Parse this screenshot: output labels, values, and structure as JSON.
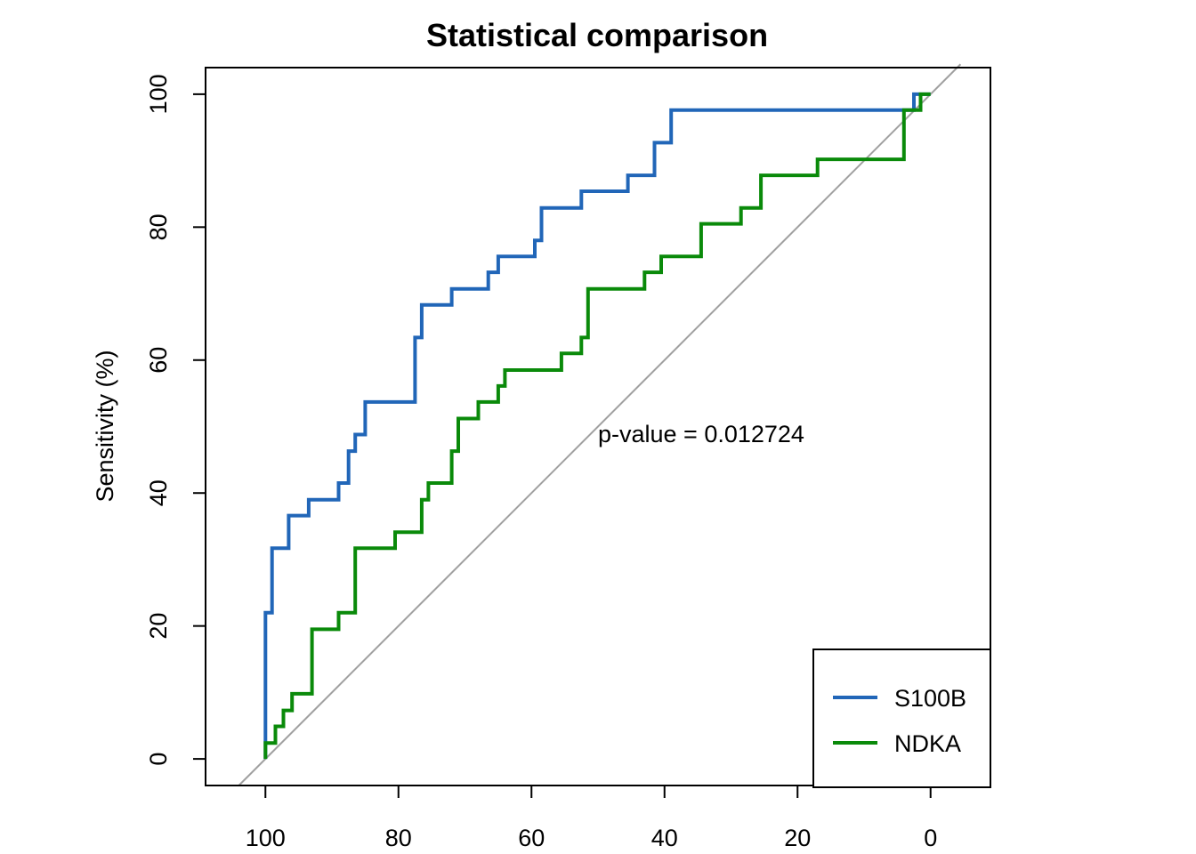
{
  "chart_data": {
    "type": "line",
    "title": "Statistical comparison",
    "xlabel": "",
    "ylabel": "Sensitivity (%)",
    "x_reversed": true,
    "xlim": [
      109,
      -9
    ],
    "ylim": [
      -4,
      104
    ],
    "x_ticks": [
      100,
      80,
      60,
      40,
      20,
      0
    ],
    "y_ticks": [
      0,
      20,
      40,
      60,
      80,
      100
    ],
    "x_tick_labels": [
      "100",
      "80",
      "60",
      "40",
      "20",
      "0"
    ],
    "y_tick_labels": [
      "0",
      "20",
      "40",
      "60",
      "80",
      "100"
    ],
    "annotation": "p-value = 0.012724",
    "annotation_pos": [
      50,
      49
    ],
    "legend_position": "bottom-right",
    "diagonal": {
      "color": "#a0a0a0"
    },
    "series": [
      {
        "name": "S100B",
        "color": "#2166b8",
        "x": [
          100,
          100,
          99,
          99,
          96.5,
          96.5,
          93.5,
          93.5,
          89,
          89,
          87.5,
          87.5,
          86.5,
          86.5,
          85,
          85,
          77.5,
          77.5,
          76.5,
          76.5,
          72,
          72,
          66.5,
          66.5,
          65,
          65,
          59.5,
          59.5,
          58.5,
          58.5,
          52.5,
          52.5,
          45.5,
          45.5,
          41.5,
          41.5,
          39,
          39,
          2.5,
          2.5,
          0
        ],
        "y": [
          0,
          22,
          22,
          31.7,
          31.7,
          36.6,
          36.6,
          39,
          39,
          41.5,
          41.5,
          46.3,
          46.3,
          48.8,
          48.8,
          53.7,
          53.7,
          63.4,
          63.4,
          68.3,
          68.3,
          70.7,
          70.7,
          73.2,
          73.2,
          75.6,
          75.6,
          78,
          78,
          82.9,
          82.9,
          85.4,
          85.4,
          87.8,
          87.8,
          92.7,
          92.7,
          97.6,
          97.6,
          100,
          100
        ]
      },
      {
        "name": "NDKA",
        "color": "#0a8a0a",
        "x": [
          100,
          100,
          98.5,
          98.5,
          97.3,
          97.3,
          96,
          96,
          93,
          93,
          89,
          89,
          86.5,
          86.5,
          80.5,
          80.5,
          76.5,
          76.5,
          75.5,
          75.5,
          72,
          72,
          71,
          71,
          68,
          68,
          65,
          65,
          64,
          64,
          55.5,
          55.5,
          52.5,
          52.5,
          51.5,
          51.5,
          43,
          43,
          40.5,
          40.5,
          34.5,
          34.5,
          28.5,
          28.5,
          25.5,
          25.5,
          17,
          17,
          4,
          4,
          1.5,
          1.5,
          0
        ],
        "y": [
          0,
          2.4,
          2.4,
          4.9,
          4.9,
          7.3,
          7.3,
          9.8,
          9.8,
          19.5,
          19.5,
          22,
          22,
          31.7,
          31.7,
          34.1,
          34.1,
          39,
          39,
          41.5,
          41.5,
          46.3,
          46.3,
          51.2,
          51.2,
          53.7,
          53.7,
          56.1,
          56.1,
          58.5,
          58.5,
          61,
          61,
          63.4,
          63.4,
          70.7,
          70.7,
          73.2,
          73.2,
          75.6,
          75.6,
          80.5,
          80.5,
          82.9,
          82.9,
          87.8,
          87.8,
          90.2,
          90.2,
          97.6,
          97.6,
          100,
          100
        ]
      }
    ]
  }
}
